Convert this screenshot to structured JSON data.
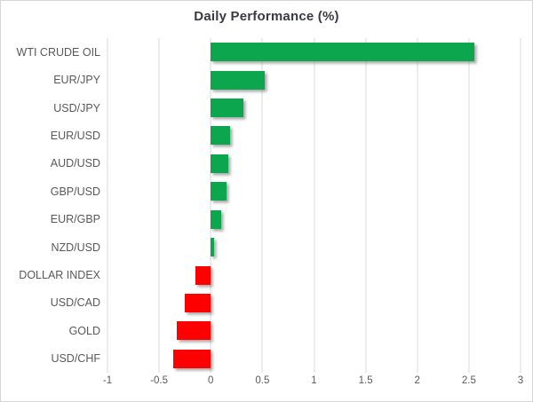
{
  "chart_data": {
    "type": "bar",
    "orientation": "horizontal",
    "title": "Daily Performance (%)",
    "categories": [
      "WTI CRUDE OIL",
      "EUR/JPY",
      "USD/JPY",
      "EUR/USD",
      "AUD/USD",
      "GBP/USD",
      "EUR/GBP",
      "NZD/USD",
      "DOLLAR INDEX",
      "USD/CAD",
      "GOLD",
      "USD/CHF"
    ],
    "values": [
      2.55,
      0.52,
      0.32,
      0.19,
      0.17,
      0.15,
      0.1,
      0.03,
      -0.15,
      -0.25,
      -0.33,
      -0.36
    ],
    "xlabel": "",
    "ylabel": "",
    "xlim": [
      -1,
      3
    ],
    "xticks": [
      -1,
      -0.5,
      0,
      0.5,
      1,
      1.5,
      2,
      2.5,
      3
    ],
    "xtick_labels": [
      "-1",
      "-0.5",
      "0",
      "0.5",
      "1",
      "1.5",
      "2",
      "2.5",
      "3"
    ],
    "grid": true,
    "legend": "none",
    "colors": {
      "positive": "#0ca64e",
      "negative": "#fe0000",
      "gridline": "#d9d9d9",
      "tick_label": "#595959",
      "category_label": "#595959",
      "title": "#3a3a42"
    }
  }
}
